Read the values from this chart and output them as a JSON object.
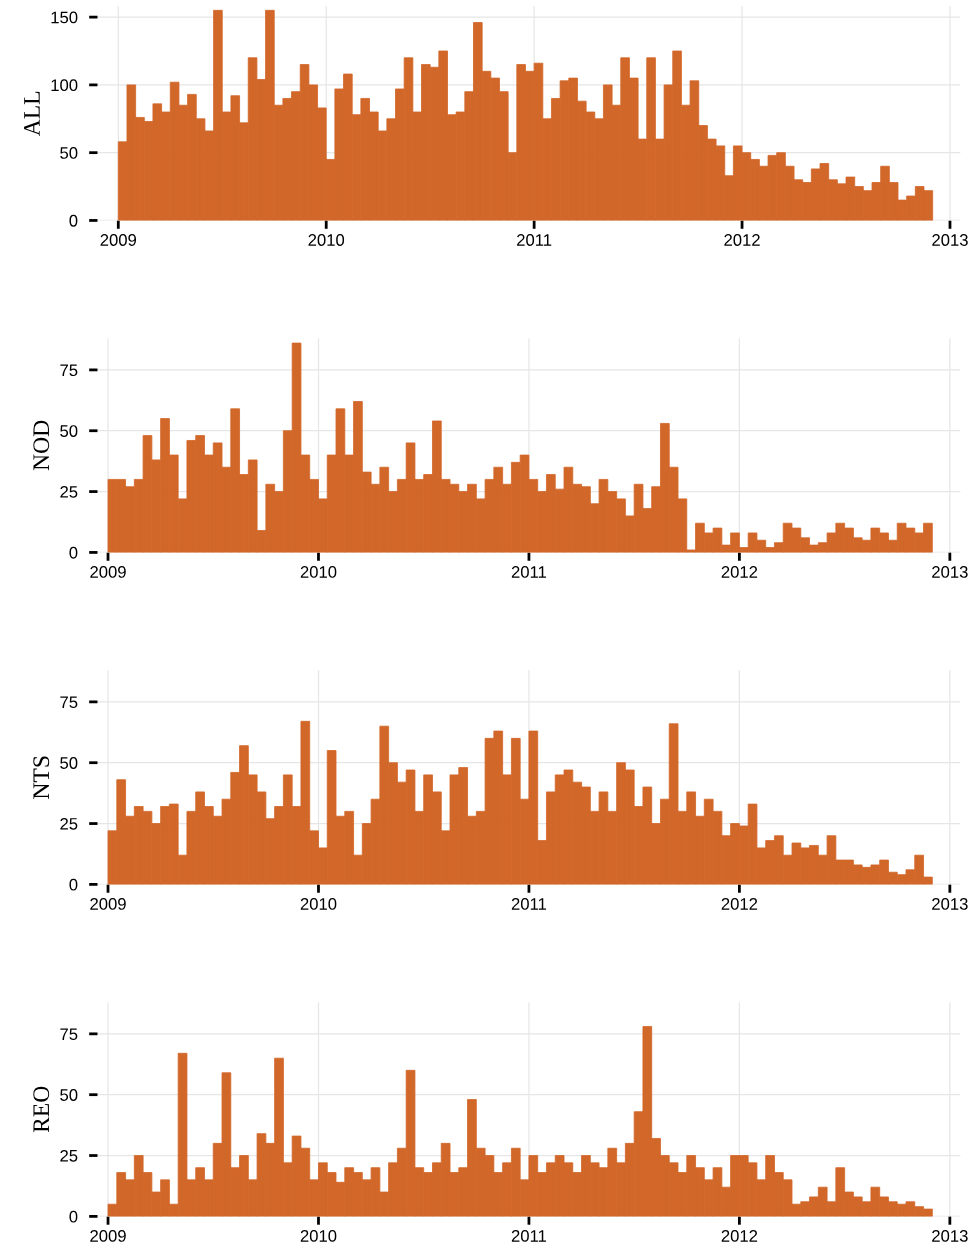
{
  "chart_data": [
    {
      "type": "histogram",
      "ylabel": "ALL",
      "color": "#d2672a",
      "grid": true,
      "xlim": [
        2008.9,
        2013.05
      ],
      "ylim": [
        0,
        158
      ],
      "xticks": [
        2009,
        2010,
        2011,
        2012,
        2013
      ],
      "yticks": [
        0,
        50,
        100,
        150
      ],
      "bins": [
        2009.0,
        2009.0417,
        2009.0833,
        2009.125,
        2009.1667,
        2009.2083,
        2009.25,
        2009.2917,
        2009.3333,
        2009.375,
        2009.4167,
        2009.4583,
        2009.5,
        2009.5417,
        2009.5833,
        2009.625,
        2009.6667,
        2009.7083,
        2009.75,
        2009.7917,
        2009.8333,
        2009.875,
        2009.9167,
        2009.9583,
        2010.0,
        2010.0417,
        2010.0833,
        2010.125,
        2010.1667,
        2010.2083,
        2010.25,
        2010.2917,
        2010.3333,
        2010.375,
        2010.4167,
        2010.4583,
        2010.5,
        2010.5417,
        2010.5833,
        2010.625,
        2010.6667,
        2010.7083,
        2010.75,
        2010.7917,
        2010.8333,
        2010.875,
        2010.9167,
        2010.9583,
        2011.0,
        2011.0417,
        2011.0833,
        2011.125,
        2011.1667,
        2011.2083,
        2011.25,
        2011.2917,
        2011.3333,
        2011.375,
        2011.4167,
        2011.4583,
        2011.5,
        2011.5417,
        2011.5833,
        2011.625,
        2011.6667,
        2011.7083,
        2011.75,
        2011.7917,
        2011.8333,
        2011.875,
        2011.9167,
        2011.9583,
        2012.0,
        2012.0417,
        2012.0833,
        2012.125,
        2012.1667,
        2012.2083,
        2012.25,
        2012.2917,
        2012.3333,
        2012.375,
        2012.4167,
        2012.4583,
        2012.5,
        2012.5417,
        2012.5833,
        2012.625,
        2012.6667,
        2012.7083,
        2012.75,
        2012.7917,
        2012.8333,
        2012.875,
        2012.9167
      ],
      "values": [
        58,
        100,
        76,
        73,
        86,
        80,
        102,
        85,
        93,
        75,
        66,
        155,
        80,
        92,
        72,
        120,
        104,
        155,
        85,
        90,
        95,
        115,
        100,
        83,
        45,
        97,
        108,
        78,
        90,
        80,
        66,
        75,
        97,
        120,
        80,
        115,
        113,
        125,
        78,
        80,
        95,
        146,
        110,
        105,
        95,
        50,
        115,
        110,
        116,
        75,
        90,
        103,
        105,
        88,
        80,
        75,
        100,
        85,
        120,
        105,
        60,
        120,
        60,
        100,
        125,
        85,
        103,
        70,
        60,
        55,
        33,
        55,
        50,
        45,
        40,
        48,
        50,
        40,
        30,
        28,
        38,
        42,
        30,
        27,
        32,
        25,
        22,
        28,
        40,
        28,
        15,
        18,
        25,
        22
      ]
    },
    {
      "type": "histogram",
      "ylabel": "NOD",
      "color": "#d2672a",
      "grid": true,
      "xlim": [
        2008.95,
        2013.05
      ],
      "ylim": [
        0,
        88
      ],
      "xticks": [
        2009,
        2010,
        2011,
        2012,
        2013
      ],
      "yticks": [
        0,
        25,
        50,
        75
      ],
      "bins": [
        2009.0,
        2009.0417,
        2009.0833,
        2009.125,
        2009.1667,
        2009.2083,
        2009.25,
        2009.2917,
        2009.3333,
        2009.375,
        2009.4167,
        2009.4583,
        2009.5,
        2009.5417,
        2009.5833,
        2009.625,
        2009.6667,
        2009.7083,
        2009.75,
        2009.7917,
        2009.8333,
        2009.875,
        2009.9167,
        2009.9583,
        2010.0,
        2010.0417,
        2010.0833,
        2010.125,
        2010.1667,
        2010.2083,
        2010.25,
        2010.2917,
        2010.3333,
        2010.375,
        2010.4167,
        2010.4583,
        2010.5,
        2010.5417,
        2010.5833,
        2010.625,
        2010.6667,
        2010.7083,
        2010.75,
        2010.7917,
        2010.8333,
        2010.875,
        2010.9167,
        2010.9583,
        2011.0,
        2011.0417,
        2011.0833,
        2011.125,
        2011.1667,
        2011.2083,
        2011.25,
        2011.2917,
        2011.3333,
        2011.375,
        2011.4167,
        2011.4583,
        2011.5,
        2011.5417,
        2011.5833,
        2011.625,
        2011.6667,
        2011.7083,
        2011.75,
        2011.7917,
        2011.8333,
        2011.875,
        2011.9167,
        2011.9583,
        2012.0,
        2012.0417,
        2012.0833,
        2012.125,
        2012.1667,
        2012.2083,
        2012.25,
        2012.2917,
        2012.3333,
        2012.375,
        2012.4167,
        2012.4583,
        2012.5,
        2012.5417,
        2012.5833,
        2012.625,
        2012.6667,
        2012.7083,
        2012.75,
        2012.7917,
        2012.8333,
        2012.875,
        2012.9167
      ],
      "values": [
        30,
        30,
        27,
        30,
        48,
        38,
        55,
        40,
        22,
        46,
        48,
        40,
        45,
        35,
        59,
        32,
        38,
        9,
        28,
        25,
        50,
        86,
        40,
        30,
        22,
        40,
        59,
        40,
        62,
        33,
        28,
        35,
        25,
        30,
        45,
        30,
        32,
        54,
        30,
        28,
        25,
        28,
        22,
        30,
        35,
        28,
        37,
        40,
        30,
        25,
        32,
        26,
        35,
        28,
        27,
        20,
        30,
        25,
        22,
        15,
        28,
        18,
        27,
        53,
        35,
        22,
        1,
        12,
        8,
        10,
        3,
        8,
        2,
        8,
        5,
        2,
        4,
        12,
        10,
        6,
        3,
        4,
        8,
        12,
        10,
        6,
        5,
        10,
        8,
        5,
        12,
        10,
        8,
        12
      ]
    },
    {
      "type": "histogram",
      "ylabel": "NTS",
      "color": "#d2672a",
      "grid": true,
      "xlim": [
        2008.95,
        2013.05
      ],
      "ylim": [
        0,
        88
      ],
      "xticks": [
        2009,
        2010,
        2011,
        2012,
        2013
      ],
      "yticks": [
        0,
        25,
        50,
        75
      ],
      "bins": [
        2009.0,
        2009.0417,
        2009.0833,
        2009.125,
        2009.1667,
        2009.2083,
        2009.25,
        2009.2917,
        2009.3333,
        2009.375,
        2009.4167,
        2009.4583,
        2009.5,
        2009.5417,
        2009.5833,
        2009.625,
        2009.6667,
        2009.7083,
        2009.75,
        2009.7917,
        2009.8333,
        2009.875,
        2009.9167,
        2009.9583,
        2010.0,
        2010.0417,
        2010.0833,
        2010.125,
        2010.1667,
        2010.2083,
        2010.25,
        2010.2917,
        2010.3333,
        2010.375,
        2010.4167,
        2010.4583,
        2010.5,
        2010.5417,
        2010.5833,
        2010.625,
        2010.6667,
        2010.7083,
        2010.75,
        2010.7917,
        2010.8333,
        2010.875,
        2010.9167,
        2010.9583,
        2011.0,
        2011.0417,
        2011.0833,
        2011.125,
        2011.1667,
        2011.2083,
        2011.25,
        2011.2917,
        2011.3333,
        2011.375,
        2011.4167,
        2011.4583,
        2011.5,
        2011.5417,
        2011.5833,
        2011.625,
        2011.6667,
        2011.7083,
        2011.75,
        2011.7917,
        2011.8333,
        2011.875,
        2011.9167,
        2011.9583,
        2012.0,
        2012.0417,
        2012.0833,
        2012.125,
        2012.1667,
        2012.2083,
        2012.25,
        2012.2917,
        2012.3333,
        2012.375,
        2012.4167,
        2012.4583,
        2012.5,
        2012.5417,
        2012.5833,
        2012.625,
        2012.6667,
        2012.7083,
        2012.75,
        2012.7917,
        2012.8333,
        2012.875,
        2012.9167
      ],
      "values": [
        22,
        43,
        28,
        32,
        30,
        25,
        32,
        33,
        12,
        30,
        38,
        32,
        28,
        35,
        46,
        57,
        45,
        38,
        27,
        32,
        45,
        32,
        67,
        22,
        15,
        55,
        28,
        30,
        12,
        25,
        35,
        65,
        50,
        42,
        47,
        30,
        45,
        38,
        22,
        45,
        48,
        28,
        30,
        60,
        63,
        45,
        60,
        35,
        63,
        18,
        38,
        45,
        47,
        42,
        40,
        30,
        38,
        30,
        50,
        47,
        32,
        40,
        25,
        35,
        66,
        30,
        38,
        28,
        35,
        30,
        20,
        25,
        24,
        33,
        15,
        18,
        20,
        12,
        17,
        15,
        16,
        12,
        20,
        10,
        10,
        8,
        7,
        8,
        10,
        5,
        4,
        6,
        12,
        3
      ]
    },
    {
      "type": "histogram",
      "ylabel": "REO",
      "color": "#d2672a",
      "grid": true,
      "xlim": [
        2008.95,
        2013.05
      ],
      "ylim": [
        0,
        88
      ],
      "xticks": [
        2009,
        2010,
        2011,
        2012,
        2013
      ],
      "yticks": [
        0,
        25,
        50,
        75
      ],
      "bins": [
        2009.0,
        2009.0417,
        2009.0833,
        2009.125,
        2009.1667,
        2009.2083,
        2009.25,
        2009.2917,
        2009.3333,
        2009.375,
        2009.4167,
        2009.4583,
        2009.5,
        2009.5417,
        2009.5833,
        2009.625,
        2009.6667,
        2009.7083,
        2009.75,
        2009.7917,
        2009.8333,
        2009.875,
        2009.9167,
        2009.9583,
        2010.0,
        2010.0417,
        2010.0833,
        2010.125,
        2010.1667,
        2010.2083,
        2010.25,
        2010.2917,
        2010.3333,
        2010.375,
        2010.4167,
        2010.4583,
        2010.5,
        2010.5417,
        2010.5833,
        2010.625,
        2010.6667,
        2010.7083,
        2010.75,
        2010.7917,
        2010.8333,
        2010.875,
        2010.9167,
        2010.9583,
        2011.0,
        2011.0417,
        2011.0833,
        2011.125,
        2011.1667,
        2011.2083,
        2011.25,
        2011.2917,
        2011.3333,
        2011.375,
        2011.4167,
        2011.4583,
        2011.5,
        2011.5417,
        2011.5833,
        2011.625,
        2011.6667,
        2011.7083,
        2011.75,
        2011.7917,
        2011.8333,
        2011.875,
        2011.9167,
        2011.9583,
        2012.0,
        2012.0417,
        2012.0833,
        2012.125,
        2012.1667,
        2012.2083,
        2012.25,
        2012.2917,
        2012.3333,
        2012.375,
        2012.4167,
        2012.4583,
        2012.5,
        2012.5417,
        2012.5833,
        2012.625,
        2012.6667,
        2012.7083,
        2012.75,
        2012.7917,
        2012.8333,
        2012.875,
        2012.9167
      ],
      "values": [
        5,
        18,
        15,
        25,
        18,
        10,
        15,
        5,
        67,
        15,
        20,
        15,
        30,
        59,
        20,
        25,
        15,
        34,
        30,
        65,
        22,
        33,
        28,
        15,
        22,
        18,
        14,
        20,
        18,
        15,
        20,
        10,
        22,
        28,
        60,
        20,
        18,
        22,
        30,
        18,
        20,
        48,
        28,
        25,
        18,
        22,
        28,
        15,
        25,
        18,
        22,
        25,
        22,
        18,
        25,
        22,
        20,
        28,
        22,
        30,
        43,
        78,
        32,
        25,
        22,
        18,
        25,
        20,
        15,
        20,
        12,
        25,
        25,
        22,
        15,
        25,
        18,
        15,
        5,
        6,
        8,
        12,
        6,
        20,
        10,
        8,
        6,
        12,
        8,
        6,
        5,
        6,
        4,
        3
      ]
    }
  ]
}
